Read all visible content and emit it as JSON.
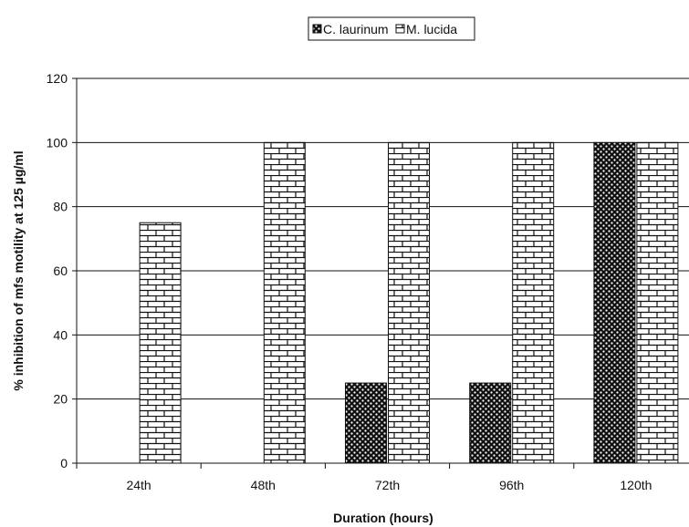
{
  "chart_data": {
    "type": "bar",
    "title": "",
    "xlabel": "Duration (hours)",
    "ylabel": "% inhibition of mfs motility at 125 µg/ml",
    "categories": [
      "24th",
      "48th",
      "72th",
      "96th",
      "120th"
    ],
    "series": [
      {
        "name": "C. laurinum",
        "values": [
          0,
          0,
          25,
          25,
          100
        ]
      },
      {
        "name": "M. lucida",
        "values": [
          75,
          100,
          100,
          100,
          100
        ]
      }
    ],
    "ylim": [
      0,
      120
    ],
    "yticks": [
      0,
      20,
      40,
      60,
      80,
      100,
      120
    ],
    "grid": true,
    "legend_position": "top"
  }
}
